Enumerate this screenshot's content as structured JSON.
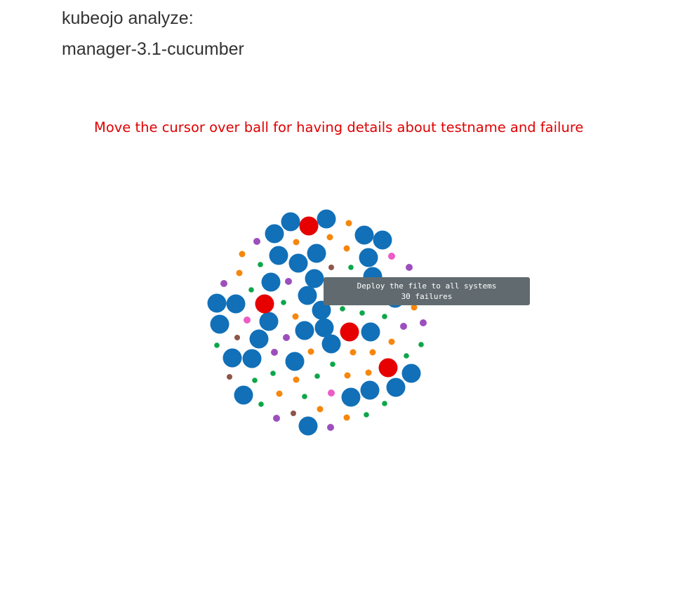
{
  "header": {
    "title_line1": "kubeojo analyze:",
    "title_line2": "manager-3.1-cucumber"
  },
  "instructions": "Move the cursor over ball for having details about testname and failure",
  "tooltip": {
    "testname": "Deploy the file to all systems",
    "failures": "30 failures"
  },
  "colors": {
    "title": "#333333",
    "instruction": "#e00000",
    "tooltip_bg": "#616b6f",
    "blue": "#1170b8",
    "red": "#e60000",
    "orange": "#f6860c",
    "green": "#0ca64a",
    "purple": "#9c4fbc",
    "pink": "#ec5cc6",
    "brown": "#8d5648"
  },
  "chart_data": {
    "type": "bubble",
    "description": "Force-packed cluster of balls, one per test; color groups by failure category",
    "groups": [
      {
        "color_key": "blue",
        "count": 38
      },
      {
        "color_key": "red",
        "count": 4
      },
      {
        "color_key": "orange",
        "count": 24
      },
      {
        "color_key": "green",
        "count": 24
      },
      {
        "color_key": "purple",
        "count": 11
      },
      {
        "color_key": "pink",
        "count": 4
      },
      {
        "color_key": "brown",
        "count": 5
      }
    ],
    "hovered": {
      "testname": "Deploy the file to all systems",
      "failures": 30
    }
  }
}
